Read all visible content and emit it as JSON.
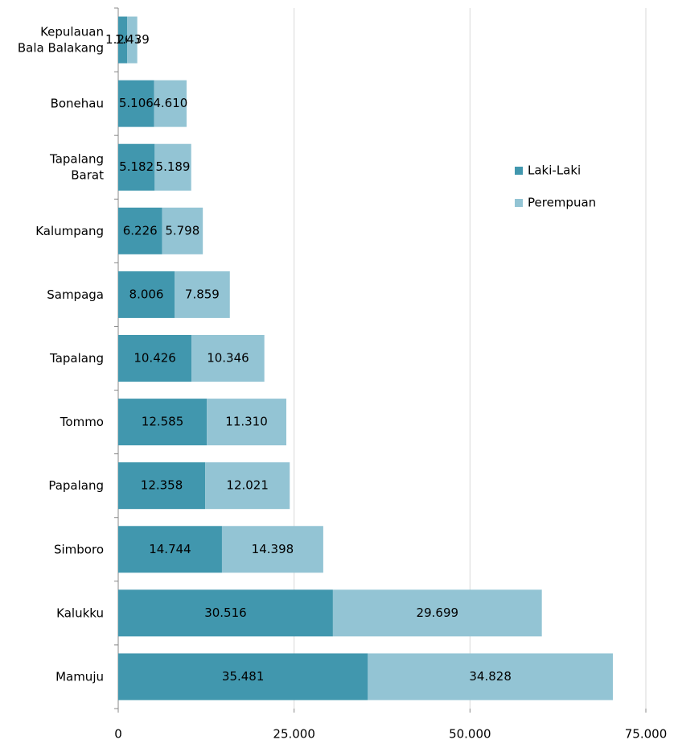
{
  "chart_data": {
    "type": "bar",
    "orientation": "horizontal",
    "stacked": true,
    "categories": [
      "Kepulauan\nBala Balakang",
      "Bonehau",
      "Tapalang\nBarat",
      "Kalumpang",
      "Sampaga",
      "Tapalang",
      "Tommo",
      "Papalang",
      "Simboro",
      "Kalukku",
      "Mamuju"
    ],
    "series": [
      {
        "name": "Laki-Laki",
        "color": "#4197ae",
        "values": [
          1266,
          5106,
          5182,
          6226,
          8006,
          10426,
          12585,
          12358,
          14744,
          30516,
          35481
        ],
        "value_labels": [
          "1.266",
          "5.106",
          "5.182",
          "6.226",
          "8.006",
          "10.426",
          "12.585",
          "12.358",
          "14.744",
          "30.516",
          "35.481"
        ]
      },
      {
        "name": "Perempuan",
        "color": "#93c4d4",
        "values": [
          1439,
          4610,
          5189,
          5798,
          7859,
          10346,
          11310,
          12021,
          14398,
          29699,
          34828
        ],
        "value_labels": [
          "1.439",
          "4.610",
          "5.189",
          "5.798",
          "7.859",
          "10.346",
          "11.310",
          "12.021",
          "14.398",
          "29.699",
          "34.828"
        ]
      }
    ],
    "xlim": [
      0,
      75000
    ],
    "xticks": [
      0,
      {
        "value": 25000,
        "label": "25.000"
      },
      {
        "value": 50000,
        "label": "50.000"
      },
      {
        "value": 75000,
        "label": "75.000"
      }
    ],
    "grid": true,
    "legend": "right"
  }
}
